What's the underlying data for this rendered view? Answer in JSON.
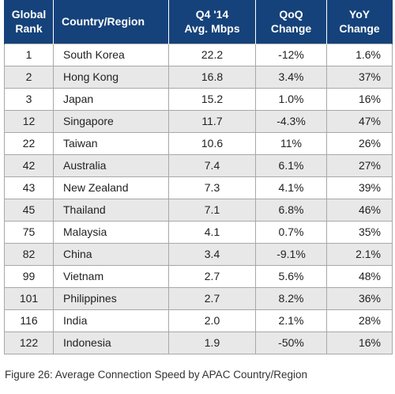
{
  "table": {
    "headers": {
      "rank": [
        "Global",
        "Rank"
      ],
      "country": "Country/Region",
      "avg": [
        "Q4 '14",
        "Avg. Mbps"
      ],
      "qoq": [
        "QoQ",
        "Change"
      ],
      "yoy": [
        "YoY",
        "Change"
      ]
    },
    "rows": [
      {
        "rank": "1",
        "country": "South Korea",
        "avg": "22.2",
        "qoq": "-12%",
        "yoy": "1.6%"
      },
      {
        "rank": "2",
        "country": "Hong Kong",
        "avg": "16.8",
        "qoq": "3.4%",
        "yoy": "37%"
      },
      {
        "rank": "3",
        "country": "Japan",
        "avg": "15.2",
        "qoq": "1.0%",
        "yoy": "16%"
      },
      {
        "rank": "12",
        "country": "Singapore",
        "avg": "11.7",
        "qoq": "-4.3%",
        "yoy": "47%"
      },
      {
        "rank": "22",
        "country": "Taiwan",
        "avg": "10.6",
        "qoq": "11%",
        "yoy": "26%"
      },
      {
        "rank": "42",
        "country": "Australia",
        "avg": "7.4",
        "qoq": "6.1%",
        "yoy": "27%"
      },
      {
        "rank": "43",
        "country": "New Zealand",
        "avg": "7.3",
        "qoq": "4.1%",
        "yoy": "39%"
      },
      {
        "rank": "45",
        "country": "Thailand",
        "avg": "7.1",
        "qoq": "6.8%",
        "yoy": "46%"
      },
      {
        "rank": "75",
        "country": "Malaysia",
        "avg": "4.1",
        "qoq": "0.7%",
        "yoy": "35%"
      },
      {
        "rank": "82",
        "country": "China",
        "avg": "3.4",
        "qoq": "-9.1%",
        "yoy": "2.1%"
      },
      {
        "rank": "99",
        "country": "Vietnam",
        "avg": "2.7",
        "qoq": "5.6%",
        "yoy": "48%"
      },
      {
        "rank": "101",
        "country": "Philippines",
        "avg": "2.7",
        "qoq": "8.2%",
        "yoy": "36%"
      },
      {
        "rank": "116",
        "country": "India",
        "avg": "2.0",
        "qoq": "2.1%",
        "yoy": "28%"
      },
      {
        "rank": "122",
        "country": "Indonesia",
        "avg": "1.9",
        "qoq": "-50%",
        "yoy": "16%"
      }
    ]
  },
  "caption": "Figure 26: Average Connection Speed by APAC Country/Region",
  "colors": {
    "header_bg": "#15427a",
    "header_text": "#ffffff",
    "row_alt_bg": "#e8e8e8",
    "grid_line": "#a8a8a8"
  }
}
